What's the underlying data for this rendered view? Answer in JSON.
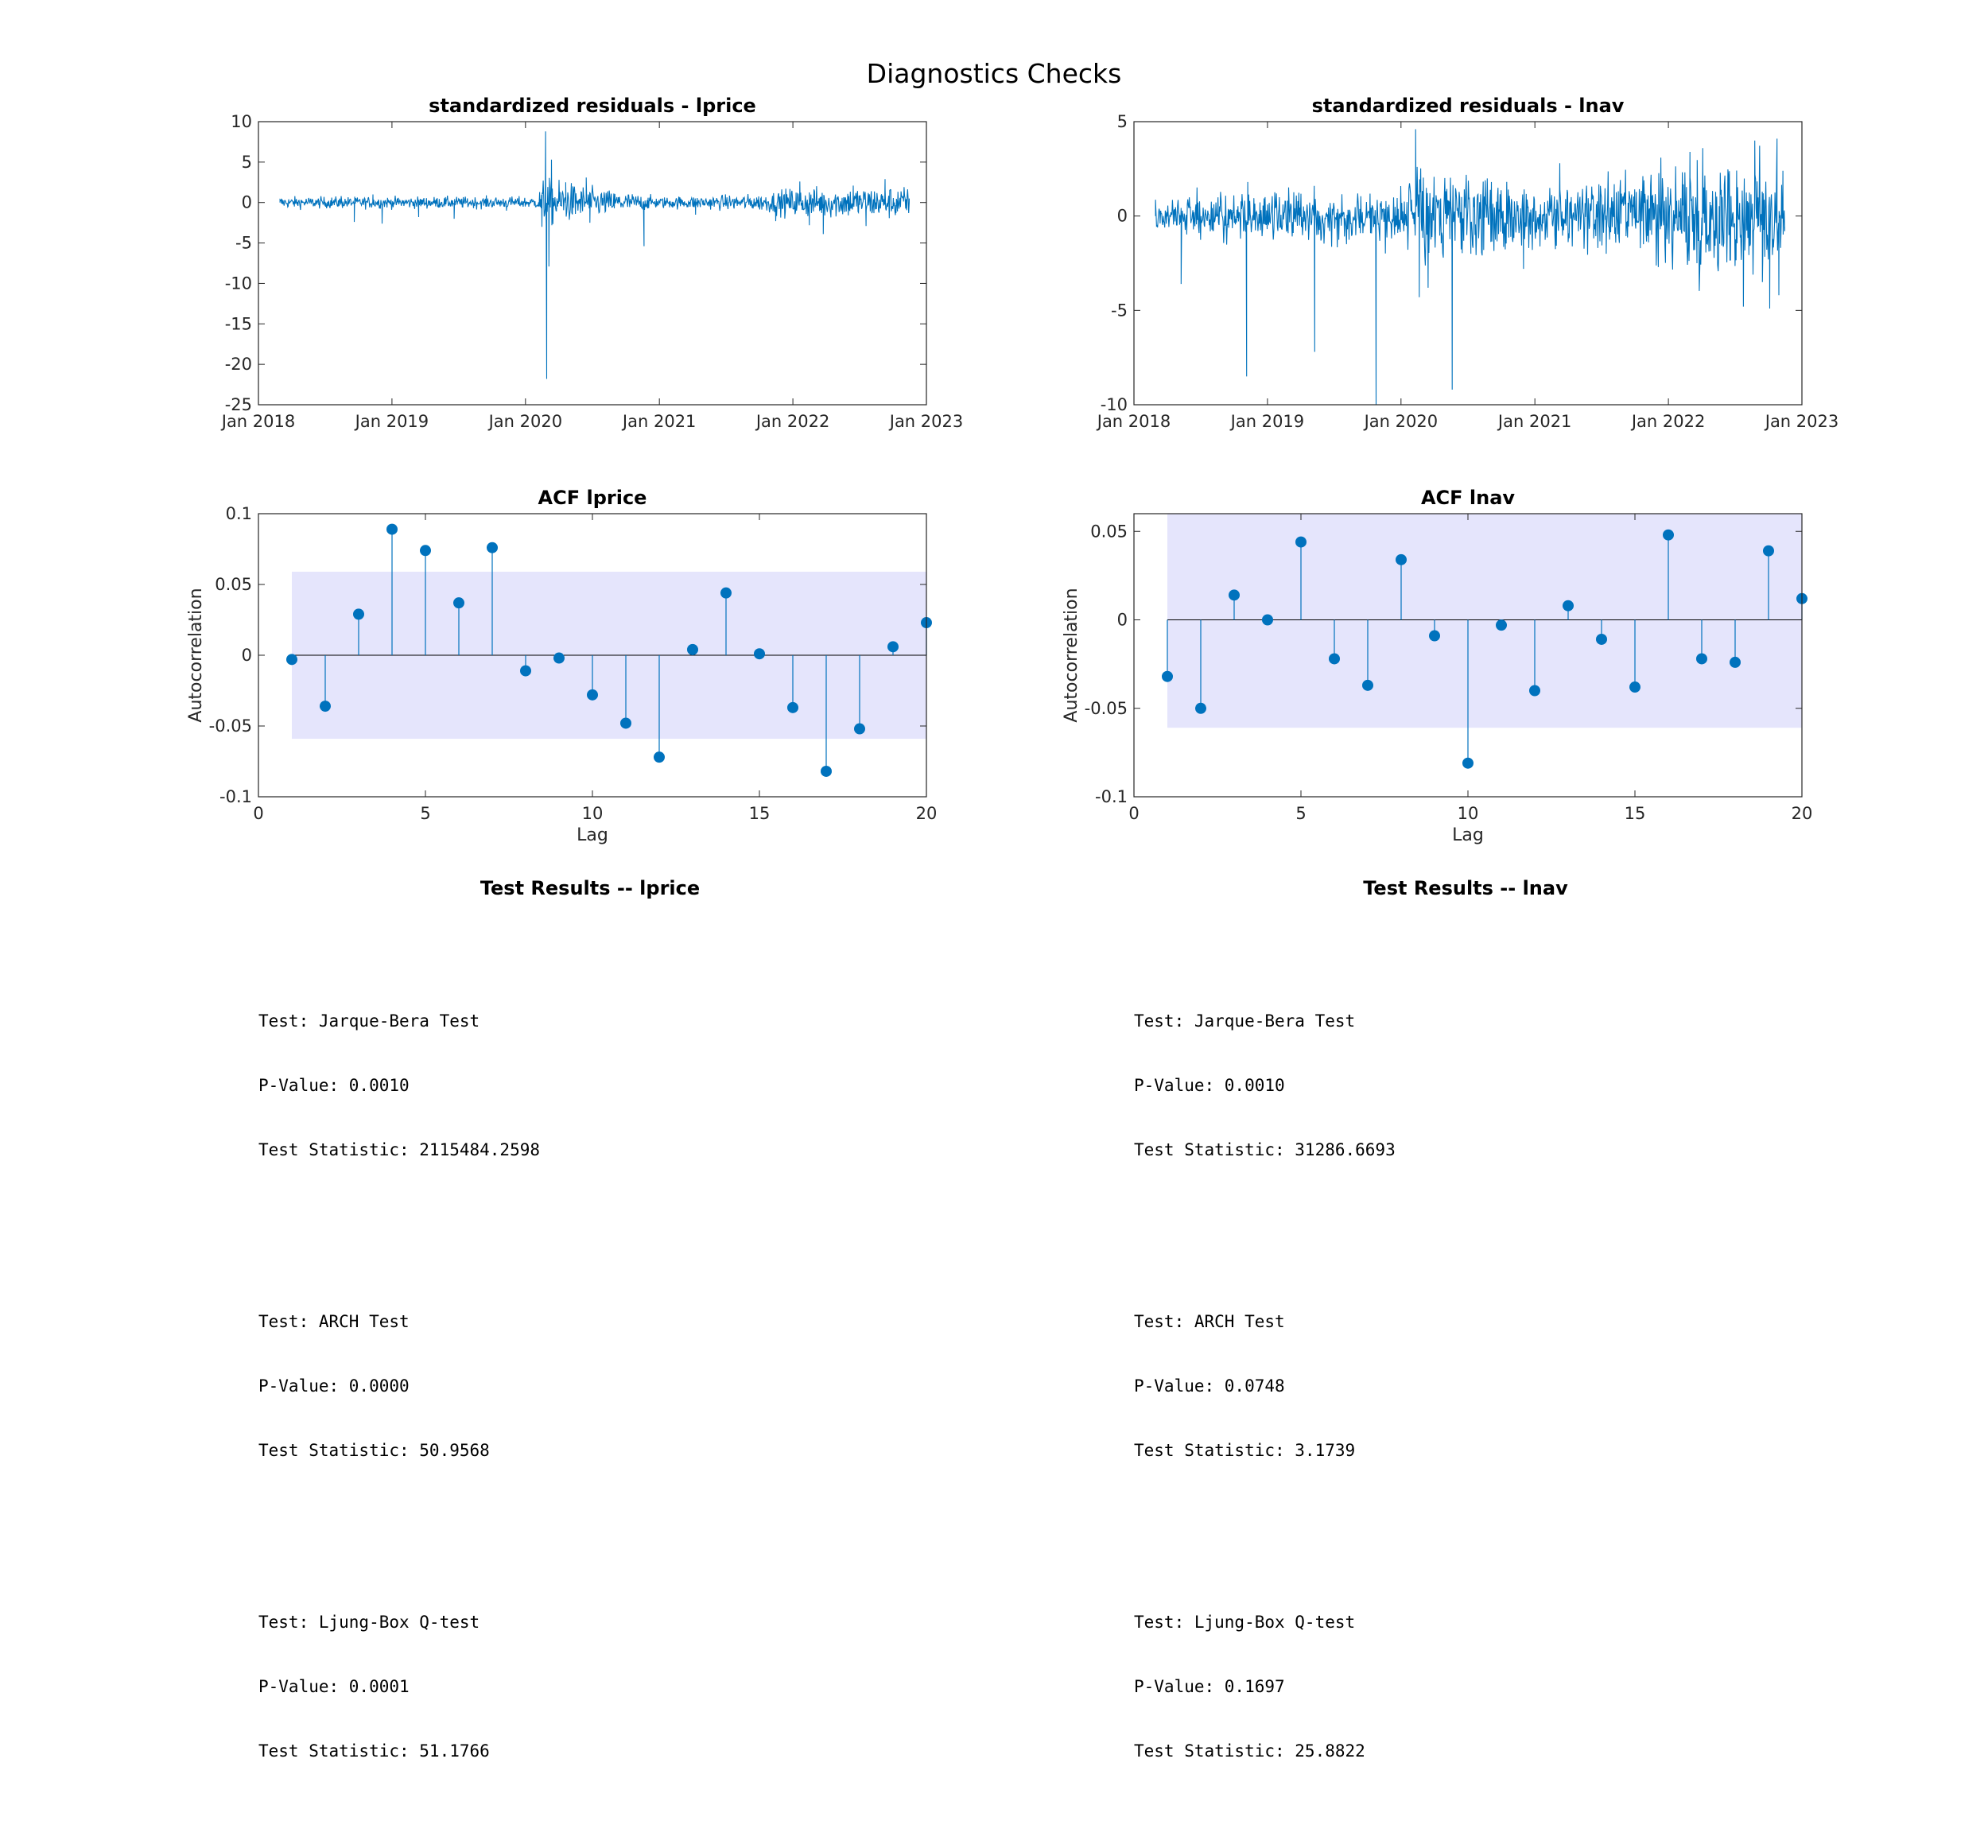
{
  "figure_title": "Diagnostics Checks",
  "colors": {
    "line": "#0072BD",
    "conf_band": "#E5E5FC",
    "axis": "#262626"
  },
  "chart_data": [
    {
      "id": "resid_lprice",
      "type": "line",
      "title": "standardized residuals - lprice",
      "xlabel": "",
      "ylabel": "",
      "xlim": [
        "2018-01-01",
        "2023-01-01"
      ],
      "x_ticks": [
        "Jan 2018",
        "Jan 2019",
        "Jan 2020",
        "Jan 2021",
        "Jan 2022",
        "Jan 2023"
      ],
      "ylim": [
        -25,
        10
      ],
      "y_ticks": [
        "10",
        "5",
        "0",
        "-5",
        "-10",
        "-15",
        "-20",
        "-25"
      ],
      "series": [
        {
          "x_start": "2018-03-01",
          "x_end": "2022-11-15",
          "points": [
            [
              "2018-03-01",
              0
            ],
            [
              "2018-06-15",
              -0.3
            ],
            [
              "2018-08-15",
              0.8
            ],
            [
              "2018-09-20",
              -2.4
            ],
            [
              "2018-11-10",
              1.0
            ],
            [
              "2018-12-05",
              -2.6
            ],
            [
              "2019-03-15",
              -1.8
            ],
            [
              "2019-06-20",
              -2.0
            ],
            [
              "2019-11-10",
              -1.0
            ],
            [
              "2020-02-15",
              -3.0
            ],
            [
              "2020-02-25",
              8.8
            ],
            [
              "2020-02-28",
              -21.8
            ],
            [
              "2020-03-05",
              -7.9
            ],
            [
              "2020-03-12",
              5.3
            ],
            [
              "2020-04-20",
              2.5
            ],
            [
              "2020-06-15",
              3.1
            ],
            [
              "2020-06-25",
              -2.5
            ],
            [
              "2020-11-20",
              -5.4
            ],
            [
              "2021-04-10",
              -1.5
            ],
            [
              "2021-11-15",
              -2.3
            ],
            [
              "2022-01-20",
              2.6
            ],
            [
              "2022-02-15",
              -2.8
            ],
            [
              "2022-03-25",
              -3.9
            ],
            [
              "2022-06-15",
              2.1
            ],
            [
              "2022-07-20",
              -2.9
            ],
            [
              "2022-09-10",
              2.9
            ],
            [
              "2022-10-10",
              -1.3
            ],
            [
              "2022-11-15",
              0
            ]
          ],
          "volatility": [
            [
              "2018-03-01",
              0.35
            ],
            [
              "2020-02-01",
              0.35
            ],
            [
              "2020-02-20",
              1.5
            ],
            [
              "2020-07-01",
              0.9
            ],
            [
              "2021-01-01",
              0.35
            ],
            [
              "2021-10-01",
              0.5
            ],
            [
              "2022-01-01",
              0.9
            ],
            [
              "2022-11-15",
              1.0
            ]
          ]
        }
      ]
    },
    {
      "id": "resid_lnav",
      "type": "line",
      "title": "standardized residuals - lnav",
      "xlabel": "",
      "ylabel": "",
      "xlim": [
        "2018-01-01",
        "2023-01-01"
      ],
      "x_ticks": [
        "Jan 2018",
        "Jan 2019",
        "Jan 2020",
        "Jan 2021",
        "Jan 2022",
        "Jan 2023"
      ],
      "ylim": [
        -10,
        5
      ],
      "y_ticks": [
        "5",
        "0",
        "-5",
        "-10"
      ],
      "series": [
        {
          "x_start": "2018-03-01",
          "x_end": "2022-11-15",
          "points": [
            [
              "2018-03-01",
              0
            ],
            [
              "2018-05-10",
              -3.6
            ],
            [
              "2018-11-05",
              -8.5
            ],
            [
              "2018-11-08",
              1.8
            ],
            [
              "2019-05-10",
              -7.2
            ],
            [
              "2019-10-25",
              -10.0
            ],
            [
              "2020-02-10",
              4.6
            ],
            [
              "2020-02-20",
              -4.3
            ],
            [
              "2020-03-15",
              -3.8
            ],
            [
              "2020-05-20",
              -9.2
            ],
            [
              "2020-07-10",
              -2.0
            ],
            [
              "2020-12-01",
              -2.8
            ],
            [
              "2021-03-10",
              2.8
            ],
            [
              "2021-07-15",
              -2.0
            ],
            [
              "2022-03-01",
              3.4
            ],
            [
              "2022-03-20",
              -2.5
            ],
            [
              "2022-04-05",
              3.6
            ],
            [
              "2022-07-25",
              -4.8
            ],
            [
              "2022-08-25",
              4.0
            ],
            [
              "2022-09-15",
              -3.5
            ],
            [
              "2022-10-05",
              -4.9
            ],
            [
              "2022-10-25",
              4.1
            ],
            [
              "2022-10-30",
              -4.2
            ],
            [
              "2022-11-10",
              2.4
            ],
            [
              "2022-11-15",
              -0.8
            ]
          ],
          "volatility": [
            [
              "2018-03-01",
              0.45
            ],
            [
              "2019-01-01",
              0.6
            ],
            [
              "2020-01-01",
              0.7
            ],
            [
              "2020-03-01",
              1.2
            ],
            [
              "2021-01-01",
              0.8
            ],
            [
              "2021-10-01",
              1.0
            ],
            [
              "2022-01-01",
              1.4
            ],
            [
              "2022-11-15",
              1.6
            ]
          ]
        }
      ]
    },
    {
      "id": "acf_lprice",
      "type": "stem",
      "title": "ACF lprice",
      "xlabel": "Lag",
      "ylabel": "Autocorrelation",
      "xlim": [
        0,
        20
      ],
      "x_ticks": [
        "0",
        "5",
        "10",
        "15",
        "20"
      ],
      "ylim": [
        -0.1,
        0.1
      ],
      "y_ticks": [
        "0.1",
        "0.05",
        "0",
        "-0.05",
        "-0.1"
      ],
      "conf_bound": 0.059,
      "lags": [
        1,
        2,
        3,
        4,
        5,
        6,
        7,
        8,
        9,
        10,
        11,
        12,
        13,
        14,
        15,
        16,
        17,
        18,
        19,
        20
      ],
      "values": [
        -0.003,
        -0.036,
        0.029,
        0.089,
        0.074,
        0.037,
        0.076,
        -0.011,
        -0.002,
        -0.028,
        -0.048,
        -0.072,
        0.004,
        0.044,
        0.001,
        -0.037,
        -0.082,
        -0.052,
        0.006,
        0.023
      ]
    },
    {
      "id": "acf_lnav",
      "type": "stem",
      "title": "ACF lnav",
      "xlabel": "Lag",
      "ylabel": "Autocorrelation",
      "xlim": [
        0,
        20
      ],
      "x_ticks": [
        "0",
        "5",
        "10",
        "15",
        "20"
      ],
      "ylim": [
        -0.1,
        0.06
      ],
      "y_ticks": [
        "0.05",
        "0",
        "-0.05",
        "-0.1"
      ],
      "conf_bound": 0.061,
      "lags": [
        1,
        2,
        3,
        4,
        5,
        6,
        7,
        8,
        9,
        10,
        11,
        12,
        13,
        14,
        15,
        16,
        17,
        18,
        19,
        20
      ],
      "values": [
        -0.032,
        -0.05,
        0.014,
        0.0,
        0.044,
        -0.022,
        -0.037,
        0.034,
        -0.009,
        -0.081,
        -0.003,
        -0.04,
        0.008,
        -0.011,
        -0.038,
        0.048,
        -0.022,
        -0.024,
        0.039,
        0.012
      ]
    }
  ],
  "test_results": [
    {
      "title": "Test Results -- lprice",
      "tests": [
        {
          "name": "Test: Jarque-Bera Test",
          "pvalue": "P-Value: 0.0010",
          "stat": "Test Statistic: 2115484.2598"
        },
        {
          "name": "Test: ARCH Test",
          "pvalue": "P-Value: 0.0000",
          "stat": "Test Statistic: 50.9568"
        },
        {
          "name": "Test: Ljung-Box Q-test",
          "pvalue": "P-Value: 0.0001",
          "stat": "Test Statistic: 51.1766"
        }
      ]
    },
    {
      "title": "Test Results -- lnav",
      "tests": [
        {
          "name": "Test: Jarque-Bera Test",
          "pvalue": "P-Value: 0.0010",
          "stat": "Test Statistic: 31286.6693"
        },
        {
          "name": "Test: ARCH Test",
          "pvalue": "P-Value: 0.0748",
          "stat": "Test Statistic: 3.1739"
        },
        {
          "name": "Test: Ljung-Box Q-test",
          "pvalue": "P-Value: 0.1697",
          "stat": "Test Statistic: 25.8822"
        }
      ]
    }
  ]
}
